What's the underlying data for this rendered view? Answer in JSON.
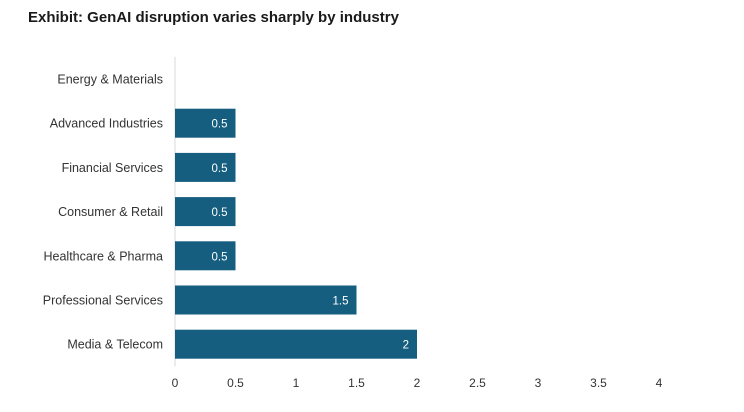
{
  "chart_data": {
    "type": "bar",
    "orientation": "horizontal",
    "title": "Exhibit: GenAI disruption varies sharply by industry",
    "categories": [
      "Energy & Materials",
      "Advanced Industries",
      "Financial Services",
      "Consumer & Retail",
      "Healthcare & Pharma",
      "Professional Services",
      "Media & Telecom"
    ],
    "values": [
      0,
      0.5,
      0.5,
      0.5,
      0.5,
      1.5,
      2
    ],
    "data_labels": [
      "",
      "0.5",
      "0.5",
      "0.5",
      "0.5",
      "1.5",
      "2"
    ],
    "xlim": [
      0,
      4
    ],
    "ticks": [
      "0",
      "0.5",
      "1",
      "1.5",
      "2",
      "2.5",
      "3",
      "3.5",
      "4"
    ],
    "grid": false,
    "legend": "none",
    "bar_color": "#155e7f"
  }
}
